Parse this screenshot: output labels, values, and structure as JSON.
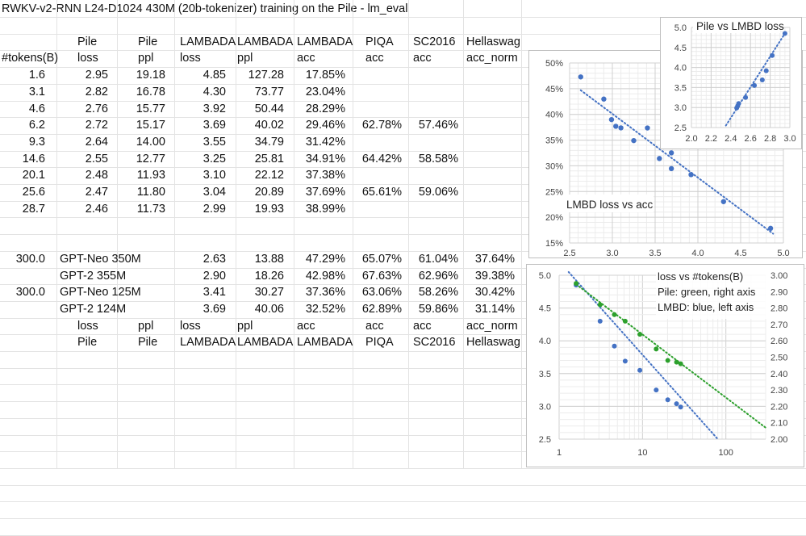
{
  "sheet": {
    "title": "RWKV-v2-RNN L24-D1024 430M (20b-tokenizer) training on the Pile - lm_eval",
    "header1": [
      "",
      "Pile",
      "Pile",
      "LAMBADA",
      "LAMBADA",
      "LAMBADA",
      "PIQA",
      "SC2016",
      "Hellaswag"
    ],
    "header2": [
      "#tokens(B)",
      "loss",
      "ppl",
      "loss",
      "ppl",
      "acc",
      "acc",
      "acc",
      "acc_norm"
    ],
    "rows": [
      [
        "1.6",
        "2.95",
        "19.18",
        "4.85",
        "127.28",
        "17.85%",
        "",
        "",
        ""
      ],
      [
        "3.1",
        "2.82",
        "16.78",
        "4.30",
        "73.77",
        "23.04%",
        "",
        "",
        ""
      ],
      [
        "4.6",
        "2.76",
        "15.77",
        "3.92",
        "50.44",
        "28.29%",
        "",
        "",
        ""
      ],
      [
        "6.2",
        "2.72",
        "15.17",
        "3.69",
        "40.02",
        "29.46%",
        "62.78%",
        "57.46%",
        ""
      ],
      [
        "9.3",
        "2.64",
        "14.00",
        "3.55",
        "34.79",
        "31.42%",
        "",
        "",
        ""
      ],
      [
        "14.6",
        "2.55",
        "12.77",
        "3.25",
        "25.81",
        "34.91%",
        "64.42%",
        "58.58%",
        ""
      ],
      [
        "20.1",
        "2.48",
        "11.93",
        "3.10",
        "22.12",
        "37.38%",
        "",
        "",
        ""
      ],
      [
        "25.6",
        "2.47",
        "11.80",
        "3.04",
        "20.89",
        "37.69%",
        "65.61%",
        "59.06%",
        ""
      ],
      [
        "28.7",
        "2.46",
        "11.73",
        "2.99",
        "19.93",
        "38.99%",
        "",
        "",
        ""
      ]
    ],
    "baselines": [
      {
        "tokens": "300.0",
        "model": "GPT-Neo 350M",
        "lambada_loss": "2.63",
        "lambada_ppl": "13.88",
        "lambada_acc": "47.29%",
        "piqa": "65.07%",
        "sc2016": "61.04%",
        "hellaswag": "37.64%"
      },
      {
        "tokens": "",
        "model": "GPT-2 355M",
        "lambada_loss": "2.90",
        "lambada_ppl": "18.26",
        "lambada_acc": "42.98%",
        "piqa": "67.63%",
        "sc2016": "62.96%",
        "hellaswag": "39.38%"
      },
      {
        "tokens": "300.0",
        "model": "GPT-Neo 125M",
        "lambada_loss": "3.41",
        "lambada_ppl": "30.27",
        "lambada_acc": "37.36%",
        "piqa": "63.06%",
        "sc2016": "58.26%",
        "hellaswag": "30.42%"
      },
      {
        "tokens": "",
        "model": "GPT-2 124M",
        "lambada_loss": "3.69",
        "lambada_ppl": "40.06",
        "lambada_acc": "32.52%",
        "piqa": "62.89%",
        "sc2016": "59.86%",
        "hellaswag": "31.14%"
      }
    ],
    "footer1": [
      "",
      "loss",
      "ppl",
      "loss",
      "ppl",
      "acc",
      "acc",
      "acc",
      "acc_norm"
    ],
    "footer2": [
      "",
      "Pile",
      "Pile",
      "LAMBADA",
      "LAMBADA",
      "LAMBADA",
      "PIQA",
      "SC2016",
      "Hellaswag"
    ]
  },
  "chart_data": [
    {
      "type": "scatter",
      "title": "LMBD loss vs acc",
      "xlim": [
        2.5,
        5.0
      ],
      "ylim": [
        0.15,
        0.5
      ],
      "xticks": [
        "2.5",
        "3.0",
        "3.5",
        "4.0",
        "4.5",
        "5.0"
      ],
      "yticks": [
        "15%",
        "20%",
        "25%",
        "30%",
        "35%",
        "40%",
        "45%",
        "50%"
      ],
      "x": [
        4.85,
        4.3,
        3.92,
        3.69,
        3.55,
        3.25,
        3.1,
        3.04,
        2.99,
        2.63,
        2.9,
        3.41,
        3.69
      ],
      "y": [
        0.1785,
        0.2304,
        0.2829,
        0.2946,
        0.3142,
        0.3491,
        0.3738,
        0.3769,
        0.3899,
        0.4729,
        0.4298,
        0.3736,
        0.3252
      ],
      "trendline": [
        [
          2.63,
          0.447
        ],
        [
          4.88,
          0.168
        ]
      ],
      "color": "#4472c4",
      "grid": true
    },
    {
      "type": "scatter",
      "title": "Pile vs LMBD loss",
      "xlim": [
        2.0,
        3.0
      ],
      "ylim": [
        2.5,
        5.0
      ],
      "xticks": [
        "2.0",
        "2.2",
        "2.4",
        "2.6",
        "2.8",
        "3.0"
      ],
      "yticks": [
        "2.5",
        "3.0",
        "3.5",
        "4.0",
        "4.5",
        "5.0"
      ],
      "x": [
        2.95,
        2.82,
        2.76,
        2.72,
        2.64,
        2.55,
        2.48,
        2.47,
        2.46
      ],
      "y": [
        4.85,
        4.3,
        3.92,
        3.69,
        3.55,
        3.25,
        3.1,
        3.04,
        2.99
      ],
      "trendline": [
        [
          2.35,
          2.55
        ],
        [
          2.95,
          4.85
        ]
      ],
      "color": "#4472c4",
      "grid": true
    },
    {
      "type": "scatter",
      "title": "loss vs #tokens(B)",
      "legend_lines": [
        "Pile: green, right axis",
        "LMBD: blue, left axis"
      ],
      "xscale": "log",
      "xlim": [
        1,
        300
      ],
      "xticks": [
        "1",
        "10",
        "100"
      ],
      "ylim_left": [
        2.5,
        5.0
      ],
      "ylim_right": [
        2.0,
        3.0
      ],
      "yticks_left": [
        "2.5",
        "3.0",
        "3.5",
        "4.0",
        "4.5",
        "5.0"
      ],
      "yticks_right": [
        "2.00",
        "2.10",
        "2.20",
        "2.30",
        "2.40",
        "2.50",
        "2.60",
        "2.70",
        "2.80",
        "2.90",
        "3.00"
      ],
      "series": [
        {
          "name": "LMBD",
          "axis": "left",
          "color": "#4472c4",
          "x": [
            1.6,
            3.1,
            4.6,
            6.2,
            9.3,
            14.6,
            20.1,
            25.6,
            28.7
          ],
          "y": [
            4.85,
            4.3,
            3.92,
            3.69,
            3.55,
            3.25,
            3.1,
            3.04,
            2.99
          ],
          "trendline": [
            [
              1.3,
              5.05
            ],
            [
              80,
              2.5
            ]
          ]
        },
        {
          "name": "Pile",
          "axis": "right",
          "color": "#2ca02c",
          "x": [
            1.6,
            3.1,
            4.6,
            6.2,
            9.3,
            14.6,
            20.1,
            25.6,
            28.7
          ],
          "y": [
            2.95,
            2.82,
            2.76,
            2.72,
            2.64,
            2.55,
            2.48,
            2.47,
            2.46
          ],
          "trendline": [
            [
              1.6,
              2.945
            ],
            [
              300,
              2.07
            ]
          ]
        }
      ],
      "grid": true
    }
  ]
}
